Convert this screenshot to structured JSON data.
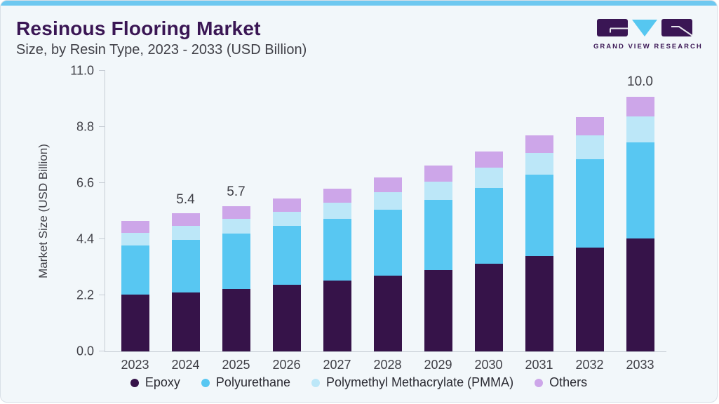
{
  "header": {
    "title": "Resinous Flooring Market",
    "subtitle": "Size, by Resin Type, 2023 - 2033 (USD Billion)"
  },
  "logo": {
    "text": "GRAND VIEW RESEARCH",
    "block_color": "#3A1654",
    "triangle_color": "#56C7F0"
  },
  "colors": {
    "card_background": "#F2F7FA",
    "accent_bar": "#6EC8F0",
    "axis_line": "#C6CCD4",
    "text": "#3F3F46",
    "title_text": "#3A1654"
  },
  "chart_data": {
    "type": "bar",
    "stacked": true,
    "title": "Resinous Flooring Market Size, by Resin Type, 2023 - 2033 (USD Billion)",
    "xlabel": "",
    "ylabel": "Market Size (USD Billion)",
    "yticks": [
      "0.0",
      "2.2",
      "4.4",
      "6.6",
      "8.8",
      "11.0"
    ],
    "ylim": [
      0,
      11
    ],
    "grid": false,
    "legend_position": "bottom",
    "categories": [
      "2023",
      "2024",
      "2025",
      "2026",
      "2027",
      "2028",
      "2029",
      "2030",
      "2031",
      "2032",
      "2033"
    ],
    "series": [
      {
        "name": "Epoxy",
        "color": "#361349",
        "values": [
          2.22,
          2.32,
          2.46,
          2.61,
          2.79,
          2.98,
          3.19,
          3.45,
          3.74,
          4.07,
          4.44
        ]
      },
      {
        "name": "Polyurethane",
        "color": "#58C7F2",
        "values": [
          1.92,
          2.04,
          2.16,
          2.3,
          2.42,
          2.58,
          2.76,
          2.97,
          3.19,
          3.46,
          3.75
        ]
      },
      {
        "name": "Polymethyl Methacrylate (PMMA)",
        "color": "#BCE7F8",
        "values": [
          0.5,
          0.57,
          0.58,
          0.57,
          0.62,
          0.67,
          0.7,
          0.78,
          0.84,
          0.93,
          1.02
        ]
      },
      {
        "name": "Others",
        "color": "#CDA6E9",
        "values": [
          0.47,
          0.49,
          0.48,
          0.52,
          0.55,
          0.58,
          0.64,
          0.64,
          0.71,
          0.72,
          0.78
        ]
      }
    ],
    "totals": [
      5.1,
      5.4,
      5.7,
      6.0,
      6.4,
      6.8,
      7.3,
      7.8,
      8.5,
      9.2,
      10.0
    ],
    "bar_value_labels": [
      {
        "category": "2024",
        "label": "5.4"
      },
      {
        "category": "2025",
        "label": "5.7"
      },
      {
        "category": "2033",
        "label": "10.0"
      }
    ]
  }
}
